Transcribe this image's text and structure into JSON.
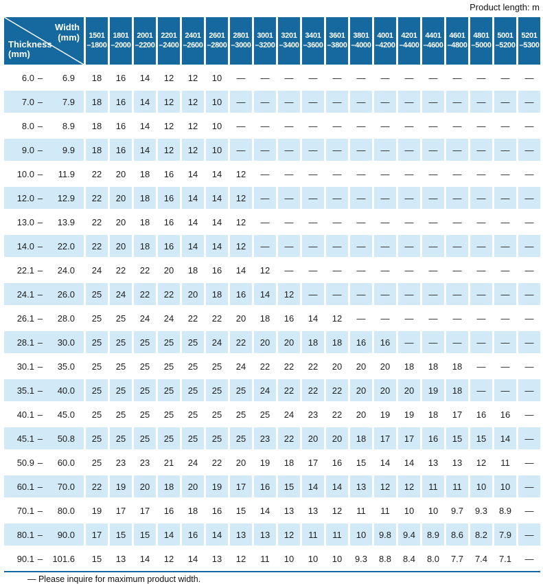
{
  "note_top": "Product length: m",
  "corner": {
    "width_label": "Width",
    "width_unit": "(mm)",
    "thickness_label": "Thickness",
    "thickness_unit": "(mm)"
  },
  "range_separator": "–",
  "columns": [
    {
      "line1": "1501",
      "line2": "–1800"
    },
    {
      "line1": "1801",
      "line2": "–2000"
    },
    {
      "line1": "2001",
      "line2": "–2200"
    },
    {
      "line1": "2201",
      "line2": "–2400"
    },
    {
      "line1": "2401",
      "line2": "–2600"
    },
    {
      "line1": "2601",
      "line2": "–2800"
    },
    {
      "line1": "2801",
      "line2": "–3000"
    },
    {
      "line1": "3001",
      "line2": "–3200"
    },
    {
      "line1": "3201",
      "line2": "–3400"
    },
    {
      "line1": "3401",
      "line2": "–3600"
    },
    {
      "line1": "3601",
      "line2": "–3800"
    },
    {
      "line1": "3801",
      "line2": "–4000"
    },
    {
      "line1": "4001",
      "line2": "–4200"
    },
    {
      "line1": "4201",
      "line2": "–4400"
    },
    {
      "line1": "4401",
      "line2": "–4600"
    },
    {
      "line1": "4601",
      "line2": "–4800"
    },
    {
      "line1": "4801",
      "line2": "–5000"
    },
    {
      "line1": "5001",
      "line2": "–5200"
    },
    {
      "line1": "5201",
      "line2": "–5300"
    }
  ],
  "rows": [
    {
      "min": "6.0",
      "max": "6.9",
      "values": [
        "18",
        "16",
        "14",
        "12",
        "12",
        "10",
        "—",
        "—",
        "—",
        "—",
        "—",
        "—",
        "—",
        "—",
        "—",
        "—",
        "—",
        "—",
        "—"
      ]
    },
    {
      "min": "7.0",
      "max": "7.9",
      "values": [
        "18",
        "16",
        "14",
        "12",
        "12",
        "10",
        "—",
        "—",
        "—",
        "—",
        "—",
        "—",
        "—",
        "—",
        "—",
        "—",
        "—",
        "—",
        "—"
      ]
    },
    {
      "min": "8.0",
      "max": "8.9",
      "values": [
        "18",
        "16",
        "14",
        "12",
        "12",
        "10",
        "—",
        "—",
        "—",
        "—",
        "—",
        "—",
        "—",
        "—",
        "—",
        "—",
        "—",
        "—",
        "—"
      ]
    },
    {
      "min": "9.0",
      "max": "9.9",
      "values": [
        "18",
        "16",
        "14",
        "12",
        "12",
        "10",
        "—",
        "—",
        "—",
        "—",
        "—",
        "—",
        "—",
        "—",
        "—",
        "—",
        "—",
        "—",
        "—"
      ]
    },
    {
      "min": "10.0",
      "max": "11.9",
      "values": [
        "22",
        "20",
        "18",
        "16",
        "14",
        "14",
        "12",
        "—",
        "—",
        "—",
        "—",
        "—",
        "—",
        "—",
        "—",
        "—",
        "—",
        "—",
        "—"
      ]
    },
    {
      "min": "12.0",
      "max": "12.9",
      "values": [
        "22",
        "20",
        "18",
        "16",
        "14",
        "14",
        "12",
        "—",
        "—",
        "—",
        "—",
        "—",
        "—",
        "—",
        "—",
        "—",
        "—",
        "—",
        "—"
      ]
    },
    {
      "min": "13.0",
      "max": "13.9",
      "values": [
        "22",
        "20",
        "18",
        "16",
        "14",
        "14",
        "12",
        "—",
        "—",
        "—",
        "—",
        "—",
        "—",
        "—",
        "—",
        "—",
        "—",
        "—",
        "—"
      ]
    },
    {
      "min": "14.0",
      "max": "22.0",
      "values": [
        "22",
        "20",
        "18",
        "16",
        "14",
        "14",
        "12",
        "—",
        "—",
        "—",
        "—",
        "—",
        "—",
        "—",
        "—",
        "—",
        "—",
        "—",
        "—"
      ]
    },
    {
      "min": "22.1",
      "max": "24.0",
      "values": [
        "24",
        "22",
        "22",
        "20",
        "18",
        "16",
        "14",
        "12",
        "—",
        "—",
        "—",
        "—",
        "—",
        "—",
        "—",
        "—",
        "—",
        "—",
        "—"
      ]
    },
    {
      "min": "24.1",
      "max": "26.0",
      "values": [
        "25",
        "24",
        "22",
        "22",
        "20",
        "18",
        "16",
        "14",
        "12",
        "—",
        "—",
        "—",
        "—",
        "—",
        "—",
        "—",
        "—",
        "—",
        "—"
      ]
    },
    {
      "min": "26.1",
      "max": "28.0",
      "values": [
        "25",
        "25",
        "24",
        "24",
        "22",
        "22",
        "20",
        "18",
        "16",
        "14",
        "12",
        "—",
        "—",
        "—",
        "—",
        "—",
        "—",
        "—",
        "—"
      ]
    },
    {
      "min": "28.1",
      "max": "30.0",
      "values": [
        "25",
        "25",
        "25",
        "25",
        "25",
        "24",
        "22",
        "20",
        "20",
        "18",
        "18",
        "16",
        "16",
        "—",
        "—",
        "—",
        "—",
        "—",
        "—"
      ]
    },
    {
      "min": "30.1",
      "max": "35.0",
      "values": [
        "25",
        "25",
        "25",
        "25",
        "25",
        "25",
        "24",
        "22",
        "22",
        "22",
        "20",
        "20",
        "20",
        "18",
        "18",
        "18",
        "—",
        "—",
        "—"
      ]
    },
    {
      "min": "35.1",
      "max": "40.0",
      "values": [
        "25",
        "25",
        "25",
        "25",
        "25",
        "25",
        "25",
        "24",
        "22",
        "22",
        "22",
        "20",
        "20",
        "20",
        "19",
        "18",
        "—",
        "—",
        "—"
      ]
    },
    {
      "min": "40.1",
      "max": "45.0",
      "values": [
        "25",
        "25",
        "25",
        "25",
        "25",
        "25",
        "25",
        "25",
        "24",
        "23",
        "22",
        "20",
        "19",
        "19",
        "18",
        "17",
        "16",
        "16",
        "—"
      ]
    },
    {
      "min": "45.1",
      "max": "50.8",
      "values": [
        "25",
        "25",
        "25",
        "25",
        "25",
        "25",
        "25",
        "23",
        "22",
        "20",
        "20",
        "18",
        "17",
        "17",
        "16",
        "15",
        "15",
        "14",
        "—"
      ]
    },
    {
      "min": "50.9",
      "max": "60.0",
      "values": [
        "25",
        "23",
        "23",
        "21",
        "24",
        "22",
        "20",
        "19",
        "18",
        "17",
        "16",
        "15",
        "14",
        "14",
        "13",
        "13",
        "12",
        "11",
        "—"
      ]
    },
    {
      "min": "60.1",
      "max": "70.0",
      "values": [
        "22",
        "19",
        "20",
        "18",
        "20",
        "19",
        "17",
        "16",
        "15",
        "14",
        "14",
        "13",
        "12",
        "12",
        "11",
        "11",
        "10",
        "10",
        "—"
      ]
    },
    {
      "min": "70.1",
      "max": "80.0",
      "values": [
        "19",
        "17",
        "17",
        "16",
        "18",
        "16",
        "15",
        "14",
        "13",
        "13",
        "12",
        "11",
        "11",
        "10",
        "10",
        "9.7",
        "9.3",
        "8.9",
        "—"
      ]
    },
    {
      "min": "80.1",
      "max": "90.0",
      "values": [
        "17",
        "15",
        "15",
        "14",
        "16",
        "14",
        "13",
        "13",
        "12",
        "11",
        "11",
        "10",
        "9.8",
        "9.4",
        "8.9",
        "8.6",
        "8.2",
        "7.9",
        "—"
      ]
    },
    {
      "min": "90.1",
      "max": "101.6",
      "values": [
        "15",
        "13",
        "14",
        "12",
        "14",
        "13",
        "12",
        "11",
        "10",
        "10",
        "10",
        "9.3",
        "8.8",
        "8.4",
        "8.0",
        "7.7",
        "7.4",
        "7.1",
        "—"
      ]
    }
  ],
  "footnote": "— Please inquire for maximum product width.",
  "colors": {
    "header_blue": "#15699f",
    "row_stripe": "#d2eaf7",
    "text": "#1c1c1c"
  }
}
